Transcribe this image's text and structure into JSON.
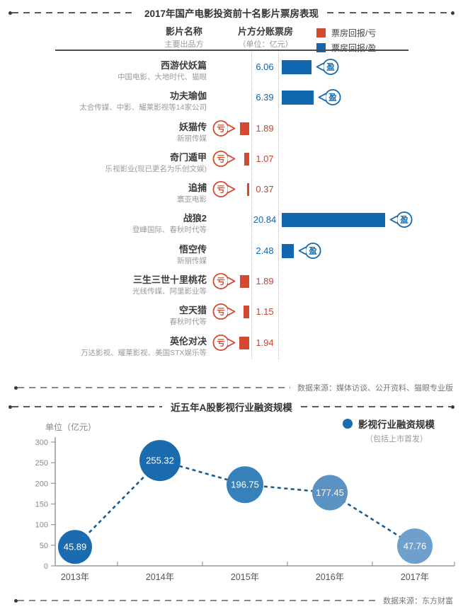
{
  "colors": {
    "profit": "#1268ae",
    "loss": "#d4492f",
    "profit_text": "#1268ae",
    "loss_text": "#c9462f",
    "line": "#1a5c8e",
    "legend_dot": "#1b6cae"
  },
  "chart_data": [
    {
      "type": "bar",
      "orientation": "horizontal",
      "title": "2017年国产电影投资前十名影片票房表现",
      "unit_note": "（单位：亿元）",
      "col_headers": {
        "film": "影片名称",
        "film_sub": "主要出品方",
        "boxoffice": "片方分账票房"
      },
      "legend": [
        {
          "label": "票房回报/亏",
          "color": "#d4492f",
          "status": "loss"
        },
        {
          "label": "票房回报/盈",
          "color": "#1268ae",
          "status": "profit"
        }
      ],
      "badge_labels": {
        "profit": "盈",
        "loss": "亏"
      },
      "categories": [
        "西游伏妖篇",
        "功夫瑜伽",
        "妖猫传",
        "奇门遁甲",
        "追捕",
        "战狼2",
        "悟空传",
        "三生三世十里桃花",
        "空天猎",
        "英伦对决"
      ],
      "producers": [
        "中国电影、大地时代、猫眼",
        "太合传媒、中影、耀莱影视等14家公司",
        "新丽传媒",
        "乐视影业(现已更名为乐创文娱)",
        "寰亚电影",
        "登峰国际、春秋时代等",
        "新丽传媒",
        "光线传媒、阿里影业等",
        "春秋时代等",
        "万达影视、耀莱影视、美国STX娱乐等"
      ],
      "values": [
        6.06,
        6.39,
        1.89,
        1.07,
        0.37,
        20.84,
        2.48,
        1.89,
        1.15,
        1.94
      ],
      "status": [
        "profit",
        "profit",
        "loss",
        "loss",
        "loss",
        "profit",
        "profit",
        "loss",
        "loss",
        "loss"
      ],
      "source": "数据来源：媒体访谈、公开资料、猫眼专业版"
    },
    {
      "type": "line",
      "title": "近五年A股影视行业融资规模",
      "ylabel": "单位（亿元）",
      "legend": "影视行业融资规模",
      "legend_sub": "（包括上市首发）",
      "legend_position": "top-right",
      "categories": [
        "2013年",
        "2014年",
        "2015年",
        "2016年",
        "2017年"
      ],
      "values": [
        45.89,
        255.32,
        196.75,
        177.45,
        47.76
      ],
      "point_colors": [
        "#1b6cae",
        "#1b6cae",
        "#3781bb",
        "#5b92c4",
        "#6f9fcd"
      ],
      "ylim": [
        0,
        300
      ],
      "yticks": [
        0,
        50,
        100,
        150,
        200,
        250,
        300
      ],
      "grid": false,
      "source": "数据来源：东方财富"
    }
  ]
}
